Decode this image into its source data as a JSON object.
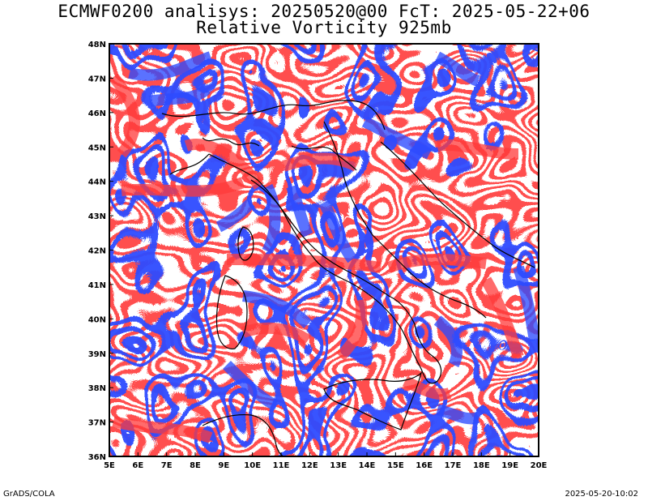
{
  "header": {
    "line1": "ECMWF0200 analisys: 20250520@00 FcT: 2025-05-22+06",
    "line2": "Relative Vorticity 925mb"
  },
  "footer": {
    "credit": "GrADS/COLA",
    "timestamp": "2025-05-20-10:02"
  },
  "map": {
    "lon_range": [
      5,
      20
    ],
    "lat_range": [
      36,
      48
    ],
    "lon_ticks": [
      "5E",
      "6E",
      "7E",
      "8E",
      "9E",
      "10E",
      "11E",
      "12E",
      "13E",
      "14E",
      "15E",
      "16E",
      "17E",
      "18E",
      "19E",
      "20E"
    ],
    "lat_ticks": [
      "36N",
      "37N",
      "38N",
      "39N",
      "40N",
      "41N",
      "42N",
      "43N",
      "44N",
      "45N",
      "46N",
      "47N",
      "48N"
    ],
    "colors": {
      "positive_vorticity": "#ff3a3a",
      "negative_vorticity": "#2d4bff",
      "coastline": "#000000"
    }
  }
}
